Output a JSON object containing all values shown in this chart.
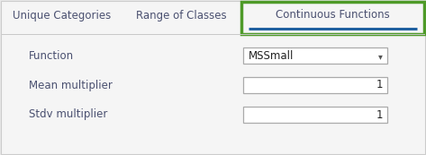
{
  "bg_color": "#e8e8e8",
  "panel_color": "#f5f5f5",
  "white_color": "#ffffff",
  "tab_labels": [
    "Unique Categories",
    "Range of Classes",
    "Continuous Functions"
  ],
  "active_tab": 2,
  "active_tab_border_color": "#4e9a28",
  "active_tab_underline_color": "#2060a0",
  "tab_text_color": "#4a5070",
  "field_label_color": "#4a5070",
  "fields": [
    {
      "label": "Function",
      "value": "MSSmall",
      "type": "dropdown"
    },
    {
      "label": "Mean multiplier",
      "value": "1",
      "type": "input"
    },
    {
      "label": "Stdv multiplier",
      "value": "1",
      "type": "input"
    }
  ],
  "field_box_color": "#ffffff",
  "field_box_border": "#aaaaaa",
  "font_size": 8.5,
  "tab_font_size": 8.5,
  "figw": 4.73,
  "figh": 1.73,
  "dpi": 100
}
